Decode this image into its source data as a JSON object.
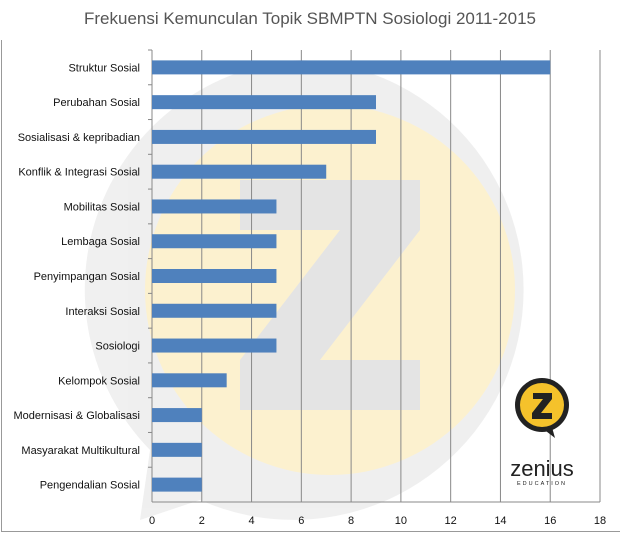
{
  "chart_data": {
    "type": "bar",
    "orientation": "horizontal",
    "title": "Frekuensi Kemunculan Topik SBMPTN Sosiologi 2011-2015",
    "categories": [
      "Struktur Sosial",
      "Perubahan Sosial",
      "Sosialisasi & kepribadian",
      "Konflik & Integrasi Sosial",
      "Mobilitas Sosial",
      "Lembaga Sosial",
      "Penyimpangan Sosial",
      "Interaksi Sosial",
      "Sosiologi",
      "Kelompok Sosial",
      "Modernisasi & Globalisasi",
      "Masyarakat Multikultural",
      "Pengendalian Sosial"
    ],
    "values": [
      16,
      9,
      9,
      7,
      5,
      5,
      5,
      5,
      5,
      3,
      2,
      2,
      2
    ],
    "xlim": [
      0,
      18
    ],
    "xticks": [
      "0",
      "2",
      "4",
      "6",
      "8",
      "10",
      "12",
      "14",
      "16",
      "18"
    ],
    "grid": true,
    "bar_color": "#4f81bd"
  },
  "logo": {
    "name": "zenius",
    "sub": "EDUCATION",
    "accent": "#f5c22b"
  }
}
